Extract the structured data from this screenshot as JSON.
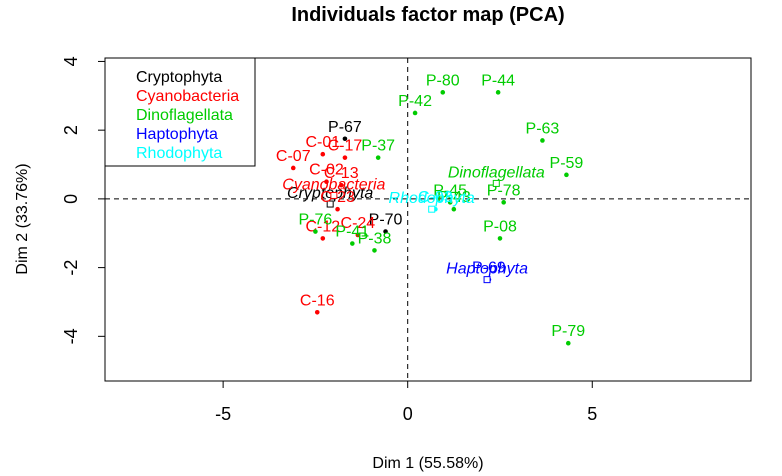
{
  "chart_data": {
    "type": "scatter",
    "title": "Individuals factor map (PCA)",
    "xlabel": "Dim 1 (55.58%)",
    "ylabel": "Dim 2 (33.76%)",
    "xlim": [
      -8.2,
      9.3
    ],
    "ylim": [
      -5.3,
      4.1
    ],
    "x_ticks": [
      -5,
      0,
      5
    ],
    "y_ticks": [
      -4,
      -2,
      0,
      2,
      4
    ],
    "grid": false,
    "reference_lines": {
      "x": 0,
      "y": 0,
      "style": "dashed"
    },
    "legend_position": "top-left",
    "series": [
      {
        "name": "Cryptophyta",
        "color": "#000000",
        "centroid": {
          "label": "Cryptophyta",
          "x": -2.1,
          "y": -0.15
        },
        "points": [
          {
            "label": "P-67",
            "x": -1.7,
            "y": 1.75
          },
          {
            "label": "P-70",
            "x": -0.6,
            "y": -0.95
          }
        ]
      },
      {
        "name": "Cyanobacteria",
        "color": "#ff0000",
        "centroid": {
          "label": "Cyanobacteria",
          "x": -2.0,
          "y": 0.1
        },
        "points": [
          {
            "label": "C-01",
            "x": -2.3,
            "y": 1.3
          },
          {
            "label": "C-17",
            "x": -1.7,
            "y": 1.2
          },
          {
            "label": "C-07",
            "x": -3.1,
            "y": 0.9
          },
          {
            "label": "C-02",
            "x": -2.2,
            "y": 0.5
          },
          {
            "label": "C-13",
            "x": -1.8,
            "y": 0.4
          },
          {
            "label": "C-23",
            "x": -1.9,
            "y": -0.3
          },
          {
            "label": "C-24",
            "x": -1.35,
            "y": -1.05
          },
          {
            "label": "C-12",
            "x": -2.3,
            "y": -1.15
          },
          {
            "label": "C-16",
            "x": -2.45,
            "y": -3.3
          }
        ]
      },
      {
        "name": "Dinoflagellata",
        "color": "#00cc00",
        "centroid": {
          "label": "Dinoflagellata",
          "x": 2.4,
          "y": 0.45
        },
        "points": [
          {
            "label": "P-80",
            "x": 0.95,
            "y": 3.1
          },
          {
            "label": "P-44",
            "x": 2.45,
            "y": 3.1
          },
          {
            "label": "P-42",
            "x": 0.2,
            "y": 2.5
          },
          {
            "label": "P-63",
            "x": 3.65,
            "y": 1.7
          },
          {
            "label": "P-37",
            "x": -0.8,
            "y": 1.2
          },
          {
            "label": "P-59",
            "x": 4.3,
            "y": 0.7
          },
          {
            "label": "P-45",
            "x": 1.15,
            "y": -0.1
          },
          {
            "label": "P-78",
            "x": 2.6,
            "y": -0.1
          },
          {
            "label": "P-43",
            "x": 1.25,
            "y": -0.3
          },
          {
            "label": "P-76",
            "x": -2.5,
            "y": -0.95
          },
          {
            "label": "P-41",
            "x": -1.5,
            "y": -1.3
          },
          {
            "label": "P-38",
            "x": -0.9,
            "y": -1.5
          },
          {
            "label": "P-08",
            "x": 2.5,
            "y": -1.15
          },
          {
            "label": "P-79",
            "x": 4.35,
            "y": -4.2
          }
        ]
      },
      {
        "name": "Haptophyta",
        "color": "#0000ff",
        "centroid": {
          "label": "Haptophyta",
          "x": 2.15,
          "y": -2.35
        },
        "points": [
          {
            "label": "P-69",
            "x": 2.2,
            "y": -2.35
          }
        ]
      },
      {
        "name": "Rhodophyta",
        "color": "#00ffff",
        "centroid": {
          "label": "Rhodophyta",
          "x": 0.65,
          "y": -0.3
        },
        "points": [
          {
            "label": "C-03",
            "x": 0.75,
            "y": -0.3
          }
        ]
      }
    ]
  }
}
